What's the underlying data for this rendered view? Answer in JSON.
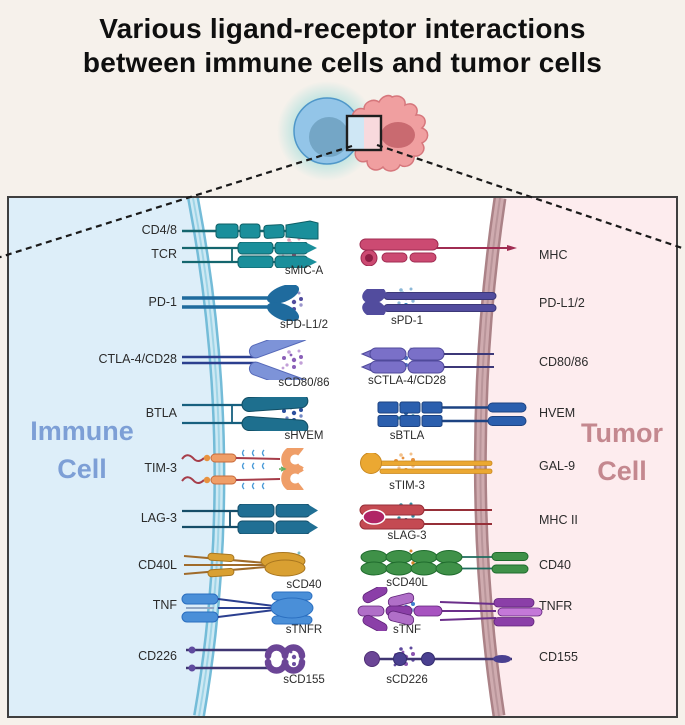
{
  "title": {
    "line1": "Various ligand-receptor interactions",
    "line2": "between immune cells and tumor cells"
  },
  "panel": {
    "immune_label": {
      "line1": "Immune",
      "line2": "Cell",
      "color": "#7d9fd6"
    },
    "tumor_label": {
      "line1": "Tumor",
      "line2": "Cell",
      "color": "#c4888f"
    },
    "left_receptors": [
      "CD4/8",
      "TCR",
      "PD-1",
      "CTLA-4/CD28",
      "BTLA",
      "TIM-3",
      "LAG-3",
      "CD40L",
      "TNF",
      "CD226"
    ],
    "right_receptors": [
      "MHC",
      "PD-L1/2",
      "CD80/86",
      "HVEM",
      "GAL-9",
      "MHC II",
      "CD40",
      "TNFR",
      "CD155"
    ],
    "left_soluble": [
      "sMIC-A",
      "sPD-L1/2",
      "sCD80/86",
      "sHVEM",
      "sCD40",
      "sTNFR",
      "sCD155"
    ],
    "right_soluble": [
      "sPD-1",
      "sCTLA-4/CD28",
      "sBTLA",
      "sTIM-3",
      "sLAG-3",
      "sCD40L",
      "sTNF",
      "sCD226"
    ]
  },
  "colors": {
    "page_background": "#f6f1eb",
    "immune_region": "#ddeef9",
    "tumor_region": "#fdecee",
    "immune_membrane": "#74bcd8",
    "tumor_membrane": "#ab8287",
    "title_text": "#0f0f0f",
    "receptors": {
      "CD4/8": "#1a8f9b",
      "TCR": "#1a8f9b",
      "PD-1": "#1f6b9e",
      "CTLA-4/CD28": "#7d93d8",
      "BTLA": "#1e6f8e",
      "TIM-3": "#ef9e68",
      "LAG-3": "#206f94",
      "CD40L": "#d9a032",
      "TNF": "#4a8fd8",
      "CD226": "#6b4596",
      "MHC": "#cc4a72",
      "PD-L1/2": "#524c9e",
      "CD80/86": "#7a70c8",
      "HVEM": "#2b5fae",
      "GAL-9": "#eba832",
      "MHC II": "#c44a52",
      "CD40": "#3f9148",
      "TNFR": "#9a4fb5",
      "CD155": "#4a4090"
    }
  },
  "soluble_colors": {
    "sMICA": [
      "#c2476f",
      "#e0a0b8"
    ],
    "sPDL12": [
      "#524c9e",
      "#9b96cc"
    ],
    "sCD8086": [
      "#8a5fb8",
      "#c2a0d8"
    ],
    "sHVEM": [
      "#2b4f9e",
      "#7388c4"
    ],
    "sCD40": [
      "#1f8a96",
      "#7fc0c8"
    ],
    "sTNFR": [
      "#8b55b0",
      "#bf94d6"
    ],
    "sCD155": [
      "#6b4fa0",
      "#4a8f9b"
    ],
    "sPD1": [
      "#2d7fb8",
      "#8cb8d8"
    ],
    "sCTLA4CD28": [
      "#4f6fc0",
      "#9b96cc"
    ],
    "sBTLA": [
      "#2b5f9e",
      "#2f8aa0"
    ],
    "sTIM3": [
      "#e8923f",
      "#f2c08a"
    ],
    "sLAG3": [
      "#1f5f8a",
      "#2f8aa0"
    ],
    "sCD40L": [
      "#e3a22f",
      "#d9842b"
    ],
    "sTNF": [
      "#3f7fd0",
      "#8fb0e0"
    ],
    "sCD226": [
      "#8b55b0",
      "#5f4a9e"
    ]
  }
}
